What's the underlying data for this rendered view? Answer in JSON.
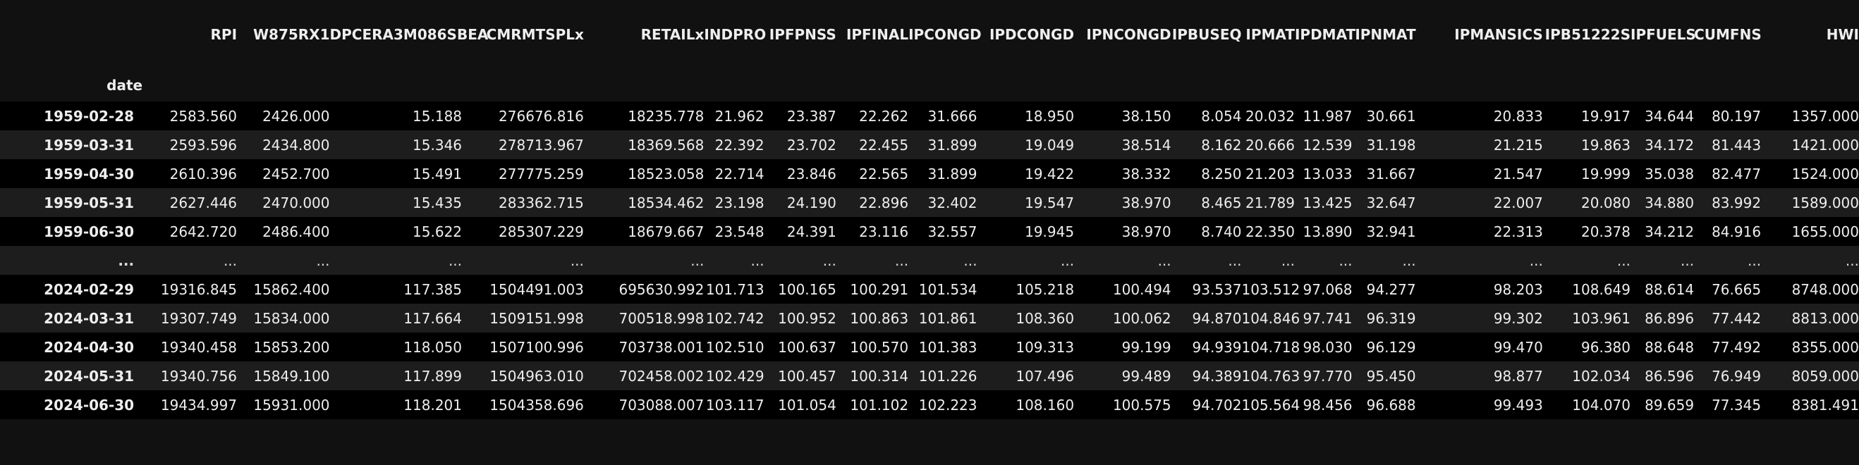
{
  "index_name": "date",
  "columns": [
    "RPI",
    "W875RX1",
    "DPCERA3M086SBEA",
    "CMRMTSPLx",
    "RETAILx",
    "INDPRO",
    "IPFPNSS",
    "IPFINAL",
    "IPCONGD",
    "IPDCONGD",
    "IPNCONGD",
    "IPBUSEQ",
    "IPMAT",
    "IPDMAT",
    "IPNMAT",
    "IPMANSICS",
    "IPB51222S",
    "IPFUELS",
    "CUMFNS",
    "HWI"
  ],
  "rows": [
    {
      "index": "1959-02-28",
      "values": [
        "2583.560",
        "2426.000",
        "15.188",
        "276676.816",
        "18235.778",
        "21.962",
        "23.387",
        "22.262",
        "31.666",
        "18.950",
        "38.150",
        "8.054",
        "20.032",
        "11.987",
        "30.661",
        "20.833",
        "19.917",
        "34.644",
        "80.197",
        "1357.000"
      ]
    },
    {
      "index": "1959-03-31",
      "values": [
        "2593.596",
        "2434.800",
        "15.346",
        "278713.967",
        "18369.568",
        "22.392",
        "23.702",
        "22.455",
        "31.899",
        "19.049",
        "38.514",
        "8.162",
        "20.666",
        "12.539",
        "31.198",
        "21.215",
        "19.863",
        "34.172",
        "81.443",
        "1421.000"
      ]
    },
    {
      "index": "1959-04-30",
      "values": [
        "2610.396",
        "2452.700",
        "15.491",
        "277775.259",
        "18523.058",
        "22.714",
        "23.846",
        "22.565",
        "31.899",
        "19.422",
        "38.332",
        "8.250",
        "21.203",
        "13.033",
        "31.667",
        "21.547",
        "19.999",
        "35.038",
        "82.477",
        "1524.000"
      ]
    },
    {
      "index": "1959-05-31",
      "values": [
        "2627.446",
        "2470.000",
        "15.435",
        "283362.715",
        "18534.462",
        "23.198",
        "24.190",
        "22.896",
        "32.402",
        "19.547",
        "38.970",
        "8.465",
        "21.789",
        "13.425",
        "32.647",
        "22.007",
        "20.080",
        "34.880",
        "83.992",
        "1589.000"
      ]
    },
    {
      "index": "1959-06-30",
      "values": [
        "2642.720",
        "2486.400",
        "15.622",
        "285307.229",
        "18679.667",
        "23.548",
        "24.391",
        "23.116",
        "32.557",
        "19.945",
        "38.970",
        "8.740",
        "22.350",
        "13.890",
        "32.941",
        "22.313",
        "20.378",
        "34.212",
        "84.916",
        "1655.000"
      ]
    },
    {
      "index": "...",
      "values": [
        "...",
        "...",
        "...",
        "...",
        "...",
        "...",
        "...",
        "...",
        "...",
        "...",
        "...",
        "...",
        "...",
        "...",
        "...",
        "...",
        "...",
        "...",
        "...",
        "..."
      ],
      "ellipsis": true
    },
    {
      "index": "2024-02-29",
      "values": [
        "19316.845",
        "15862.400",
        "117.385",
        "1504491.003",
        "695630.992",
        "101.713",
        "100.165",
        "100.291",
        "101.534",
        "105.218",
        "100.494",
        "93.537",
        "103.512",
        "97.068",
        "94.277",
        "98.203",
        "108.649",
        "88.614",
        "76.665",
        "8748.000"
      ]
    },
    {
      "index": "2024-03-31",
      "values": [
        "19307.749",
        "15834.000",
        "117.664",
        "1509151.998",
        "700518.998",
        "102.742",
        "100.952",
        "100.863",
        "101.861",
        "108.360",
        "100.062",
        "94.870",
        "104.846",
        "97.741",
        "96.319",
        "99.302",
        "103.961",
        "86.896",
        "77.442",
        "8813.000"
      ]
    },
    {
      "index": "2024-04-30",
      "values": [
        "19340.458",
        "15853.200",
        "118.050",
        "1507100.996",
        "703738.001",
        "102.510",
        "100.637",
        "100.570",
        "101.383",
        "109.313",
        "99.199",
        "94.939",
        "104.718",
        "98.030",
        "96.129",
        "99.470",
        "96.380",
        "88.648",
        "77.492",
        "8355.000"
      ]
    },
    {
      "index": "2024-05-31",
      "values": [
        "19340.756",
        "15849.100",
        "117.899",
        "1504963.010",
        "702458.002",
        "102.429",
        "100.457",
        "100.314",
        "101.226",
        "107.496",
        "99.489",
        "94.389",
        "104.763",
        "97.770",
        "95.450",
        "98.877",
        "102.034",
        "86.596",
        "76.949",
        "8059.000"
      ]
    },
    {
      "index": "2024-06-30",
      "values": [
        "19434.997",
        "15931.000",
        "118.201",
        "1504358.696",
        "703088.007",
        "103.117",
        "101.054",
        "101.102",
        "102.223",
        "108.160",
        "100.575",
        "94.702",
        "105.564",
        "98.456",
        "96.688",
        "99.493",
        "104.070",
        "89.659",
        "77.345",
        "8381.491"
      ]
    }
  ]
}
